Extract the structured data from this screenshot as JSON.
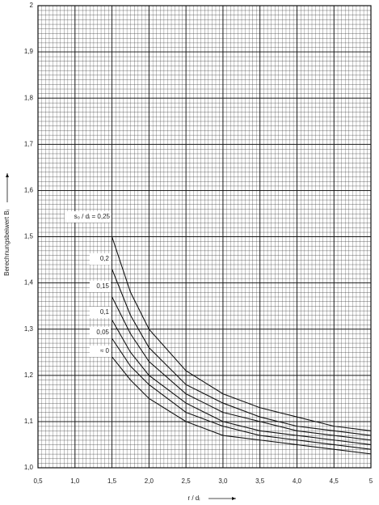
{
  "chart_data": {
    "type": "line",
    "x_label": "r / dᵢ",
    "y_label": "Berechnungsbeiwert  Bᵢ",
    "x": [
      1.5,
      1.75,
      2,
      2.5,
      3,
      3.5,
      4,
      4.5,
      5
    ],
    "series": [
      {
        "name": "s₀ / dᵢ = 0,25",
        "color": "#111111",
        "values": [
          1.5,
          1.38,
          1.3,
          1.21,
          1.16,
          1.13,
          1.11,
          1.09,
          1.08
        ]
      },
      {
        "name": "0,2",
        "color": "#111111",
        "values": [
          1.43,
          1.33,
          1.26,
          1.18,
          1.14,
          1.11,
          1.09,
          1.08,
          1.07
        ]
      },
      {
        "name": "0,15",
        "color": "#111111",
        "values": [
          1.37,
          1.29,
          1.23,
          1.16,
          1.12,
          1.1,
          1.08,
          1.07,
          1.06
        ]
      },
      {
        "name": "0,1",
        "color": "#111111",
        "values": [
          1.32,
          1.25,
          1.2,
          1.14,
          1.1,
          1.08,
          1.07,
          1.06,
          1.05
        ]
      },
      {
        "name": "0,05",
        "color": "#111111",
        "values": [
          1.28,
          1.22,
          1.18,
          1.12,
          1.09,
          1.07,
          1.06,
          1.05,
          1.04
        ]
      },
      {
        "name": "≈ 0",
        "color": "#111111",
        "values": [
          1.24,
          1.19,
          1.15,
          1.1,
          1.07,
          1.06,
          1.05,
          1.04,
          1.03
        ]
      }
    ],
    "xlim": [
      0.5,
      5
    ],
    "ylim": [
      1,
      2
    ],
    "xticks": [
      {
        "value": 0.5,
        "label": "0,5"
      },
      {
        "value": 1,
        "label": "1,0"
      },
      {
        "value": 1.5,
        "label": "1,5"
      },
      {
        "value": 2,
        "label": "2,0"
      },
      {
        "value": 2.5,
        "label": "2,5"
      },
      {
        "value": 3,
        "label": "3,0"
      },
      {
        "value": 3.5,
        "label": "3,5"
      },
      {
        "value": 4,
        "label": "4,0"
      },
      {
        "value": 4.5,
        "label": "4,5"
      },
      5
    ],
    "yticks": [
      {
        "value": 1,
        "label": "1,0"
      },
      {
        "value": 1.1,
        "label": "1,1"
      },
      {
        "value": 1.2,
        "label": "1,2"
      },
      {
        "value": 1.3,
        "label": "1,3"
      },
      {
        "value": 1.4,
        "label": "1,4"
      },
      {
        "value": 1.5,
        "label": "1,5"
      },
      {
        "value": 1.6,
        "label": "1,6"
      },
      {
        "value": 1.7,
        "label": "1,7"
      },
      {
        "value": 1.8,
        "label": "1,8"
      },
      {
        "value": 1.9,
        "label": "1,9"
      },
      2
    ],
    "grid": true
  }
}
